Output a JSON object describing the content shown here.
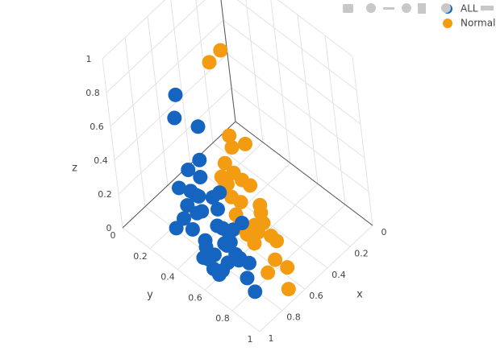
{
  "chart_data": {
    "type": "scatter3d",
    "xlabel": "x",
    "ylabel": "y",
    "zlabel": "z",
    "xlim": [
      0,
      1
    ],
    "ylim": [
      0,
      1
    ],
    "zlim": [
      0,
      1
    ],
    "xticks": [
      0,
      0.2,
      0.4,
      0.6,
      0.8,
      1
    ],
    "yticks": [
      0,
      0.2,
      0.4,
      0.6,
      0.8,
      1
    ],
    "zticks": [
      0,
      0.2,
      0.4,
      0.6,
      0.8,
      1
    ],
    "grid": true,
    "series": [
      {
        "name": "ALL",
        "color": "#1565c0",
        "x": [
          0.85,
          0.9,
          0.8,
          0.95,
          0.75,
          0.88,
          0.82,
          0.92,
          0.78,
          0.86,
          0.9,
          0.84,
          0.8,
          0.93,
          0.87,
          0.76,
          0.89,
          0.83,
          0.91,
          0.79,
          0.85,
          0.88,
          0.81,
          0.94,
          0.77,
          0.86,
          0.9,
          0.82,
          0.84,
          0.8,
          0.92,
          0.87,
          0.78,
          0.83,
          0.89,
          0.85,
          0.95,
          0.8,
          0.88,
          0.84,
          0.9,
          0.88
        ],
        "y": [
          0.5,
          0.55,
          0.6,
          0.45,
          0.65,
          0.7,
          0.4,
          0.58,
          0.62,
          0.48,
          0.52,
          0.75,
          0.68,
          0.42,
          0.56,
          0.72,
          0.6,
          0.5,
          0.64,
          0.54,
          0.8,
          0.46,
          0.66,
          0.5,
          0.58,
          0.62,
          0.44,
          0.7,
          0.52,
          0.6,
          0.56,
          0.48,
          0.76,
          0.64,
          0.54,
          0.85,
          0.38,
          0.5,
          0.66,
          0.6,
          0.45,
          0.4
        ],
        "z": [
          0.1,
          0.2,
          0.15,
          0.3,
          0.05,
          0.25,
          0.35,
          0.12,
          0.22,
          0.4,
          0.08,
          0.18,
          0.28,
          0.45,
          0.02,
          0.32,
          0.14,
          0.5,
          0.06,
          0.38,
          0.1,
          0.55,
          0.2,
          0.26,
          0.42,
          0.04,
          0.34,
          0.16,
          0.62,
          0.24,
          0.48,
          0.3,
          0.12,
          0.08,
          0.36,
          0.05,
          0.2,
          0.78,
          0.44,
          0.28,
          1.0,
          0.82
        ]
      },
      {
        "name": "Normal",
        "color": "#f39c12",
        "x": [
          0.65,
          0.6,
          0.7,
          0.55,
          0.62,
          0.68,
          0.58,
          0.72,
          0.64,
          0.6,
          0.66,
          0.7,
          0.56,
          0.62,
          0.74,
          0.68,
          0.6,
          0.64,
          0.58,
          0.7,
          0.66,
          0.62,
          0.75,
          0.6,
          0.68,
          0.64,
          0.72,
          0.58,
          0.45,
          0.5
        ],
        "y": [
          0.55,
          0.6,
          0.7,
          0.5,
          0.75,
          0.65,
          0.8,
          0.6,
          0.68,
          0.72,
          0.85,
          0.58,
          0.62,
          0.9,
          0.66,
          0.52,
          0.78,
          0.7,
          0.64,
          0.82,
          0.6,
          0.56,
          0.74,
          0.68,
          0.95,
          0.5,
          0.62,
          0.7,
          0.4,
          0.35
        ],
        "z": [
          0.3,
          0.4,
          0.2,
          0.5,
          0.25,
          0.35,
          0.15,
          0.45,
          0.1,
          0.28,
          0.12,
          0.55,
          0.6,
          0.08,
          0.32,
          0.42,
          0.18,
          0.22,
          0.38,
          0.05,
          0.48,
          0.65,
          0.26,
          0.14,
          0.02,
          0.36,
          0.2,
          0.3,
          0.95,
          0.88
        ]
      }
    ]
  }
}
